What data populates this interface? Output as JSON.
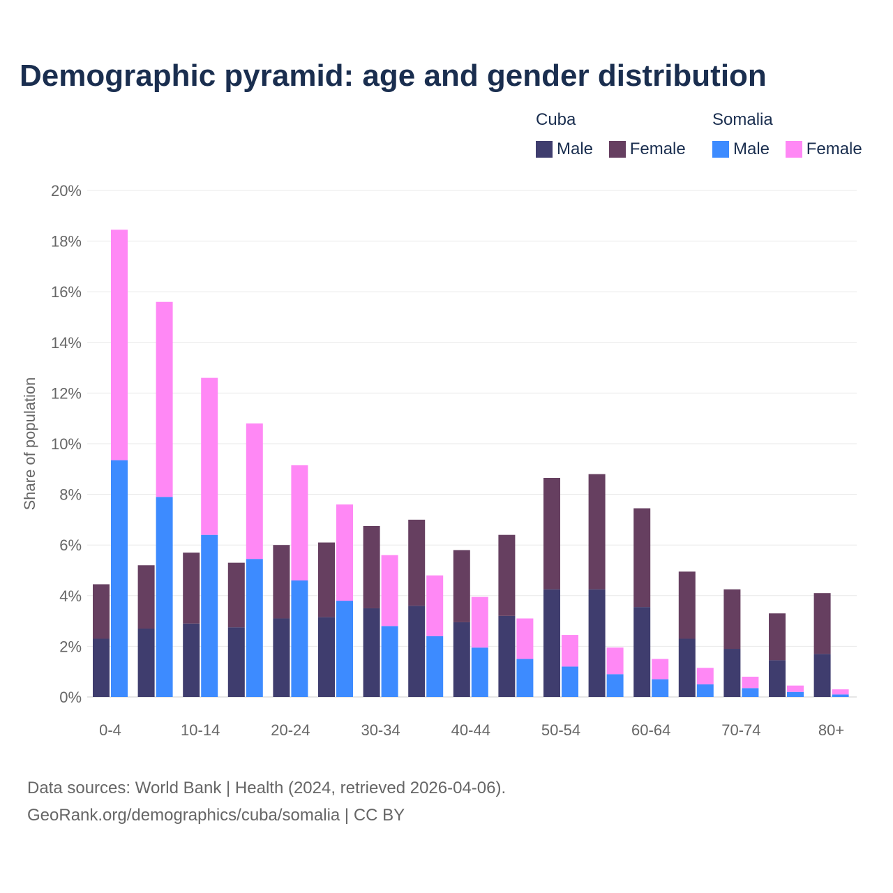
{
  "chart_data": {
    "type": "bar",
    "title": "Demographic pyramid: age and gender distribution",
    "ylabel": "Share of population",
    "xlabel": "",
    "ylim": [
      0,
      20
    ],
    "yticks": [
      "0%",
      "2%",
      "4%",
      "6%",
      "8%",
      "10%",
      "12%",
      "14%",
      "16%",
      "18%",
      "20%"
    ],
    "categories": [
      "0-4",
      "5-9",
      "10-14",
      "15-19",
      "20-24",
      "25-29",
      "30-34",
      "35-39",
      "40-44",
      "45-49",
      "50-54",
      "55-59",
      "60-64",
      "65-69",
      "70-74",
      "75-79",
      "80+"
    ],
    "xtick_labels": [
      "0-4",
      "",
      "10-14",
      "",
      "20-24",
      "",
      "30-34",
      "",
      "40-44",
      "",
      "50-54",
      "",
      "60-64",
      "",
      "70-74",
      "",
      "80+"
    ],
    "legend": {
      "groups": [
        {
          "name": "Cuba",
          "items": [
            "Male",
            "Female"
          ]
        },
        {
          "name": "Somalia",
          "items": [
            "Male",
            "Female"
          ]
        }
      ],
      "placement": "top-right"
    },
    "series": [
      {
        "country": "Cuba",
        "name": "Male",
        "color": "#3f3d6e",
        "values": [
          2.3,
          2.7,
          2.9,
          2.75,
          3.1,
          3.15,
          3.5,
          3.6,
          2.95,
          3.2,
          4.25,
          4.25,
          3.55,
          2.3,
          1.9,
          1.45,
          1.7
        ]
      },
      {
        "country": "Cuba",
        "name": "Female",
        "color": "#663f60",
        "values": [
          2.15,
          2.5,
          2.8,
          2.55,
          2.9,
          2.95,
          3.25,
          3.4,
          2.85,
          3.2,
          4.4,
          4.55,
          3.9,
          2.65,
          2.35,
          1.85,
          2.4
        ]
      },
      {
        "country": "Somalia",
        "name": "Male",
        "color": "#3d8bff",
        "values": [
          9.35,
          7.9,
          6.4,
          5.45,
          4.6,
          3.8,
          2.8,
          2.4,
          1.95,
          1.5,
          1.2,
          0.9,
          0.7,
          0.5,
          0.35,
          0.2,
          0.1
        ]
      },
      {
        "country": "Somalia",
        "name": "Female",
        "color": "#ff88f5",
        "values": [
          9.1,
          7.7,
          6.2,
          5.35,
          4.55,
          3.8,
          2.8,
          2.4,
          2.0,
          1.6,
          1.25,
          1.05,
          0.8,
          0.65,
          0.45,
          0.25,
          0.2
        ]
      }
    ]
  },
  "footer": {
    "line1": "Data sources: World Bank | Health (2024, retrieved 2026-04-06).",
    "line2": "GeoRank.org/demographics/cuba/somalia | CC BY"
  }
}
